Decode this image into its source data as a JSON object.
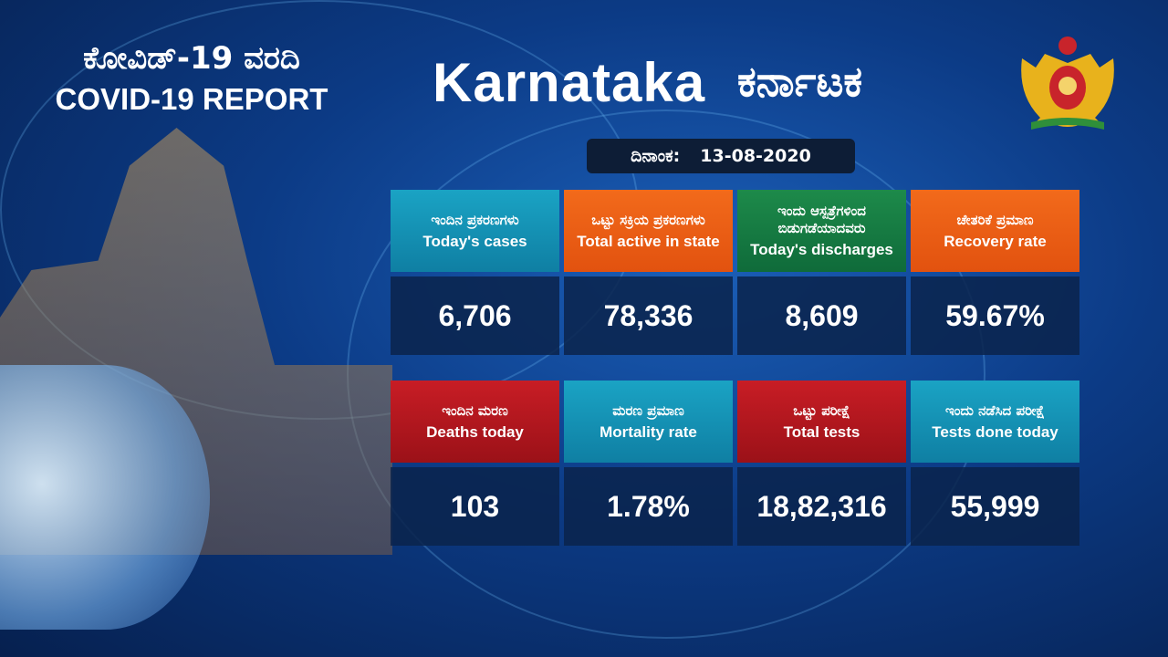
{
  "header": {
    "report_kn": "ಕೋವಿಡ್-19 ವರದಿ",
    "report_en": "COVID-19 REPORT",
    "state_en": "Karnataka",
    "state_kn": "ಕರ್ನಾಟಕ"
  },
  "date": {
    "label": "ದಿನಾಂಕ:",
    "value": "13-08-2020"
  },
  "colors": {
    "teal": "#1aa3c4",
    "orange": "#f26a1b",
    "green": "#1d8a4a",
    "red": "#c81d25",
    "value_bg": "#0a234b"
  },
  "stats": [
    {
      "kn": "ಇಂದಿನ ಪ್ರಕರಣಗಳು",
      "en": "Today's cases",
      "value": "6,706"
    },
    {
      "kn": "ಒಟ್ಟು ಸಕ್ರಿಯ ಪ್ರಕರಣಗಳು",
      "en": "Total active in state",
      "value": "78,336"
    },
    {
      "kn": "ಇಂದು ಆಸ್ಪತ್ರೆಗಳಿಂದ ಬಿಡುಗಡೆಯಾದವರು",
      "en": "Today's discharges",
      "value": "8,609"
    },
    {
      "kn": "ಚೇತರಿಕೆ ಪ್ರಮಾಣ",
      "en": "Recovery rate",
      "value": "59.67%"
    },
    {
      "kn": "ಇಂದಿನ ಮರಣ",
      "en": "Deaths today",
      "value": "103"
    },
    {
      "kn": "ಮರಣ ಪ್ರಮಾಣ",
      "en": "Mortality rate",
      "value": "1.78%"
    },
    {
      "kn": "ಒಟ್ಟು ಪರೀಕ್ಷೆ",
      "en": "Total tests",
      "value": "18,82,316"
    },
    {
      "kn": "ಇಂದು ನಡೆಸಿದ ಪರೀಕ್ಷೆ",
      "en": "Tests done today",
      "value": "55,999"
    }
  ]
}
